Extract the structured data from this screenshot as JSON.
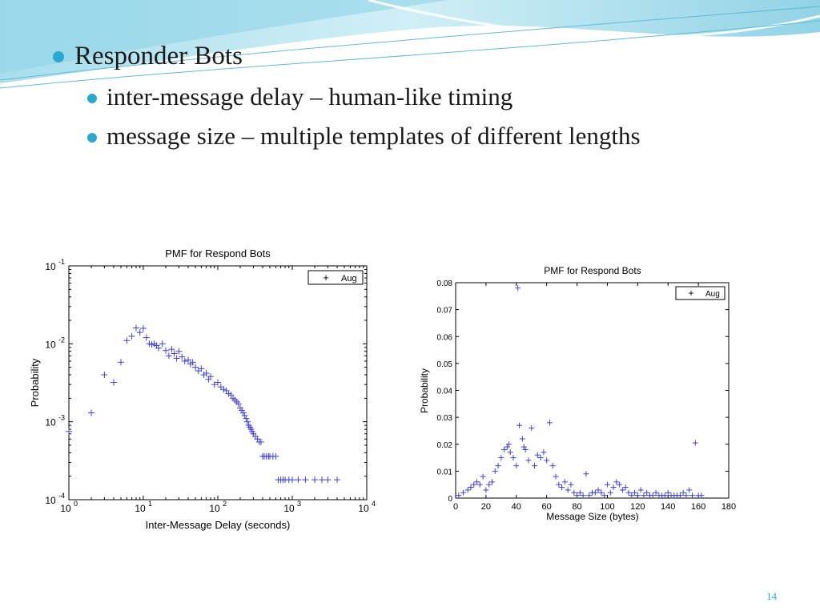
{
  "slide": {
    "bullets": [
      {
        "text": "Responder Bots"
      },
      {
        "text": "inter-message delay – human-like timing"
      },
      {
        "text": "message size – multiple templates of different lengths"
      }
    ],
    "page_number": "14",
    "accent_color": "#2aa8d0"
  },
  "chart_data": [
    {
      "type": "scatter",
      "title": "PMF for Respond Bots",
      "xlabel": "Inter-Message Delay (seconds)",
      "ylabel": "Probability",
      "xscale": "log",
      "yscale": "log",
      "xlim": [
        1,
        10000
      ],
      "ylim": [
        0.0001,
        0.1
      ],
      "x_ticks": [
        {
          "value": 1,
          "base": "10",
          "exp": "0"
        },
        {
          "value": 10,
          "base": "10",
          "exp": "1"
        },
        {
          "value": 100,
          "base": "10",
          "exp": "2"
        },
        {
          "value": 1000,
          "base": "10",
          "exp": "3"
        },
        {
          "value": 10000,
          "base": "10",
          "exp": "4"
        }
      ],
      "y_ticks": [
        {
          "value": 0.1,
          "base": "10",
          "exp": "-1"
        },
        {
          "value": 0.01,
          "base": "10",
          "exp": "-2"
        },
        {
          "value": 0.001,
          "base": "10",
          "exp": "-3"
        },
        {
          "value": 0.0001,
          "base": "10",
          "exp": "-4"
        }
      ],
      "legend_position": "top-right",
      "marker_color": "#4040d8",
      "series": [
        {
          "name": "Aug",
          "marker": "plus",
          "x": [
            1,
            2,
            3,
            4,
            5,
            6,
            7,
            8,
            9,
            10,
            11,
            12,
            13,
            14,
            15,
            16,
            18,
            20,
            22,
            24,
            26,
            28,
            30,
            33,
            36,
            40,
            43,
            46,
            50,
            55,
            60,
            65,
            70,
            75,
            80,
            90,
            100,
            110,
            120,
            130,
            140,
            150,
            160,
            170,
            180,
            190,
            200,
            210,
            220,
            230,
            240,
            250,
            260,
            270,
            280,
            290,
            300,
            320,
            340,
            360,
            380,
            400,
            420,
            450,
            480,
            500,
            550,
            600,
            650,
            700,
            750,
            800,
            900,
            1000,
            1200,
            1500,
            2000,
            2500,
            3000,
            4000
          ],
          "y": [
            0.00075,
            0.0013,
            0.004,
            0.0032,
            0.0058,
            0.011,
            0.0125,
            0.016,
            0.014,
            0.0158,
            0.012,
            0.01,
            0.0098,
            0.01,
            0.0095,
            0.0088,
            0.01,
            0.0082,
            0.007,
            0.0085,
            0.0075,
            0.0065,
            0.008,
            0.0068,
            0.006,
            0.0062,
            0.0055,
            0.0058,
            0.005,
            0.0045,
            0.0048,
            0.004,
            0.0042,
            0.0035,
            0.0038,
            0.003,
            0.0032,
            0.0028,
            0.0026,
            0.0025,
            0.0023,
            0.0022,
            0.002,
            0.0019,
            0.0018,
            0.0017,
            0.0015,
            0.0014,
            0.0013,
            0.0012,
            0.0011,
            0.001,
            0.0009,
            0.00085,
            0.0008,
            0.00075,
            0.0007,
            0.00065,
            0.0006,
            0.00055,
            0.00055,
            0.00036,
            0.00036,
            0.00036,
            0.00036,
            0.00036,
            0.00036,
            0.00036,
            0.00018,
            0.00018,
            0.00018,
            0.00018,
            0.00018,
            0.00018,
            0.00018,
            0.00018,
            0.00018,
            0.00018,
            0.00018,
            0.00018
          ]
        }
      ]
    },
    {
      "type": "scatter",
      "title": "PMF for Respond Bots",
      "xlabel": "Message Size (bytes)",
      "ylabel": "Probability",
      "xlim": [
        0,
        180
      ],
      "ylim": [
        0,
        0.08
      ],
      "x_ticks": [
        0,
        20,
        40,
        60,
        80,
        100,
        120,
        140,
        160,
        180
      ],
      "y_ticks": [
        0,
        0.01,
        0.02,
        0.03,
        0.04,
        0.05,
        0.06,
        0.07,
        0.08
      ],
      "legend_position": "top-right",
      "marker_color": "#4040d8",
      "series": [
        {
          "name": "Aug",
          "marker": "plus",
          "x": [
            2,
            5,
            8,
            10,
            12,
            14,
            16,
            18,
            20,
            22,
            24,
            26,
            28,
            30,
            32,
            34,
            35,
            36,
            38,
            40,
            41,
            42,
            44,
            45,
            46,
            48,
            50,
            52,
            54,
            56,
            58,
            60,
            62,
            64,
            66,
            68,
            70,
            72,
            74,
            76,
            78,
            80,
            82,
            84,
            86,
            88,
            90,
            92,
            94,
            96,
            98,
            100,
            102,
            104,
            106,
            108,
            110,
            112,
            114,
            116,
            118,
            120,
            122,
            124,
            126,
            128,
            130,
            132,
            134,
            136,
            138,
            140,
            142,
            144,
            146,
            148,
            150,
            152,
            154,
            156,
            158,
            160,
            162
          ],
          "y": [
            0.001,
            0.002,
            0.003,
            0.004,
            0.005,
            0.006,
            0.005,
            0.008,
            0.003,
            0.005,
            0.006,
            0.01,
            0.012,
            0.015,
            0.018,
            0.019,
            0.02,
            0.017,
            0.015,
            0.012,
            0.078,
            0.027,
            0.022,
            0.019,
            0.018,
            0.014,
            0.026,
            0.012,
            0.016,
            0.015,
            0.017,
            0.014,
            0.028,
            0.012,
            0.008,
            0.005,
            0.004,
            0.006,
            0.003,
            0.005,
            0.002,
            0.001,
            0.002,
            0.001,
            0.009,
            0.001,
            0.002,
            0.002,
            0.003,
            0.002,
            0.001,
            0.005,
            0.002,
            0.004,
            0.006,
            0.005,
            0.003,
            0.004,
            0.002,
            0.001,
            0.002,
            0.001,
            0.003,
            0.001,
            0.002,
            0.001,
            0.001,
            0.002,
            0.001,
            0.001,
            0.001,
            0.002,
            0.001,
            0.001,
            0.001,
            0.001,
            0.002,
            0.001,
            0.003,
            0.001,
            0.0205,
            0.001,
            0.001
          ]
        }
      ]
    }
  ]
}
